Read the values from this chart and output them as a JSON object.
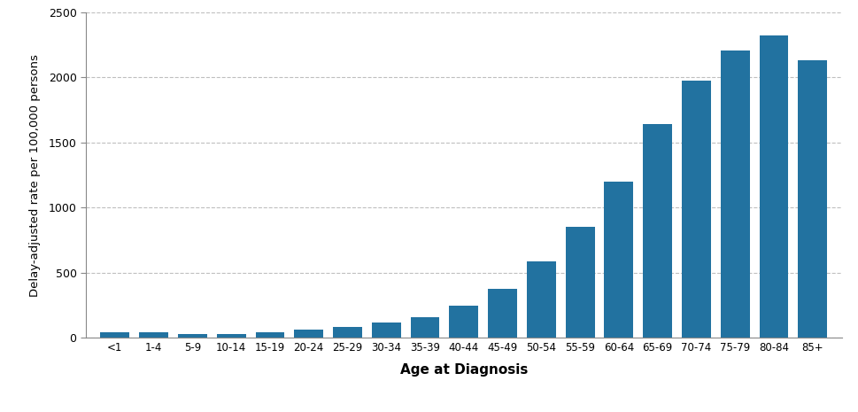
{
  "categories": [
    "<1",
    "1-4",
    "5-9",
    "10-14",
    "15-19",
    "20-24",
    "25-29",
    "30-34",
    "35-39",
    "40-44",
    "45-49",
    "50-54",
    "55-59",
    "60-64",
    "65-69",
    "70-74",
    "75-79",
    "80-84",
    "85+"
  ],
  "values": [
    45,
    45,
    30,
    30,
    45,
    60,
    85,
    115,
    160,
    250,
    375,
    590,
    850,
    1200,
    1640,
    1975,
    2210,
    2320,
    2130
  ],
  "bar_color": "#2272a0",
  "ylabel": "Delay-adjusted rate per 100,000 persons",
  "xlabel": "Age at Diagnosis",
  "ylim": [
    0,
    2500
  ],
  "yticks": [
    0,
    500,
    1000,
    1500,
    2000,
    2500
  ],
  "background_color": "#ffffff",
  "grid_color": "#b0b0b0",
  "bar_edge_color": "none",
  "spine_color": "#888888"
}
